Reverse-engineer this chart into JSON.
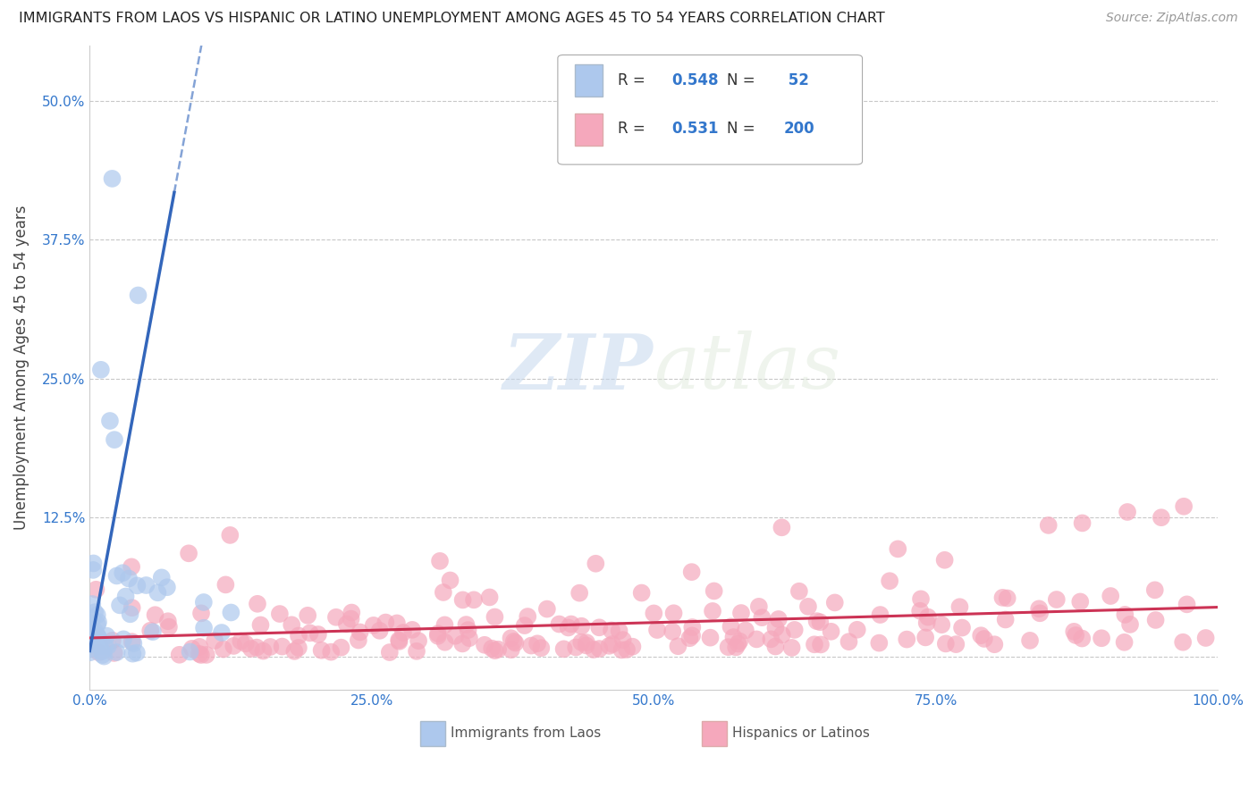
{
  "title": "IMMIGRANTS FROM LAOS VS HISPANIC OR LATINO UNEMPLOYMENT AMONG AGES 45 TO 54 YEARS CORRELATION CHART",
  "source": "Source: ZipAtlas.com",
  "ylabel": "Unemployment Among Ages 45 to 54 years",
  "xlim": [
    0,
    1.0
  ],
  "ylim": [
    -0.03,
    0.55
  ],
  "xticks": [
    0.0,
    0.25,
    0.5,
    0.75,
    1.0
  ],
  "xticklabels": [
    "0.0%",
    "25.0%",
    "50.0%",
    "75.0%",
    "100.0%"
  ],
  "yticks": [
    0.0,
    0.125,
    0.25,
    0.375,
    0.5
  ],
  "yticklabels": [
    "",
    "12.5%",
    "25.0%",
    "37.5%",
    "50.0%"
  ],
  "laos_R": 0.548,
  "laos_N": 52,
  "hispanic_R": 0.531,
  "hispanic_N": 200,
  "laos_color": "#adc8ed",
  "laos_line_color": "#3366bb",
  "hispanic_color": "#f5a8bc",
  "hispanic_line_color": "#cc3355",
  "background_color": "#ffffff",
  "grid_color": "#c8c8c8",
  "title_color": "#222222",
  "axis_label_color": "#444444",
  "tick_color": "#3377cc",
  "watermark_zip": "ZIP",
  "watermark_atlas": "atlas",
  "legend_label_laos": "Immigrants from Laos",
  "legend_label_hispanic": "Hispanics or Latinos"
}
